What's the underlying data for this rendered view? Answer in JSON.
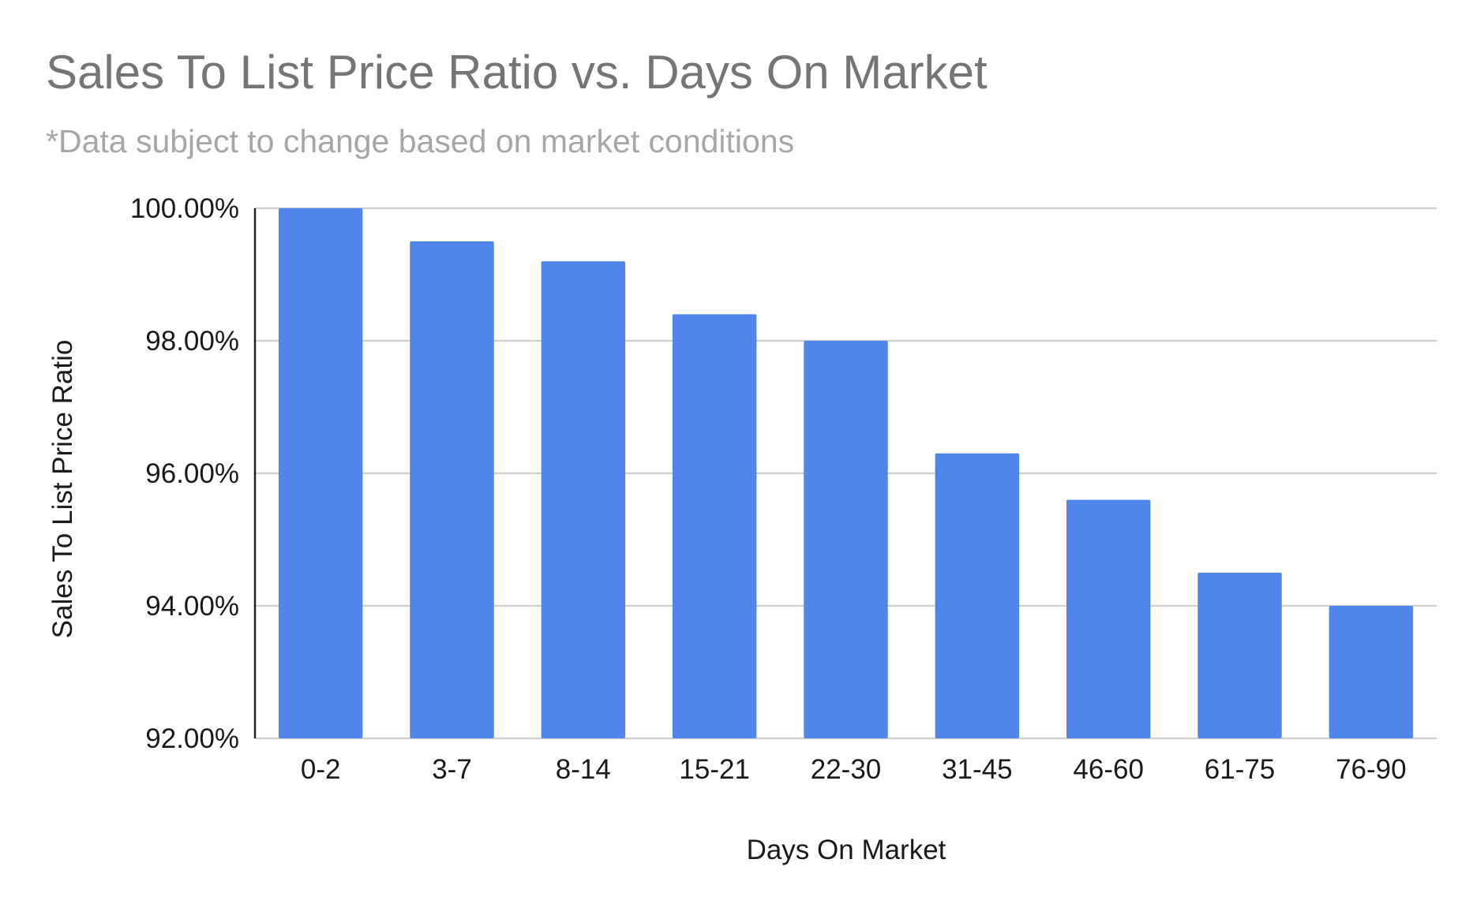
{
  "chart_data": {
    "type": "bar",
    "title": "Sales To List Price Ratio vs. Days On Market",
    "subtitle": "*Data subject to change based on market conditions",
    "xlabel": "Days On Market",
    "ylabel": "Sales To List Price Ratio",
    "categories": [
      "0-2",
      "3-7",
      "8-14",
      "15-21",
      "22-30",
      "31-45",
      "46-60",
      "61-75",
      "76-90"
    ],
    "series": [
      {
        "values": [
          100.0,
          99.5,
          99.2,
          98.4,
          98.0,
          96.3,
          95.6,
          94.5,
          94.0
        ],
        "color": "#5086ea"
      }
    ],
    "ylim": [
      92,
      100
    ],
    "yticks": [
      92,
      94,
      96,
      98,
      100
    ],
    "ytick_labels": [
      "92.00%",
      "94.00%",
      "96.00%",
      "98.00%",
      "100.00%"
    ],
    "grid": true,
    "legend": "none"
  }
}
